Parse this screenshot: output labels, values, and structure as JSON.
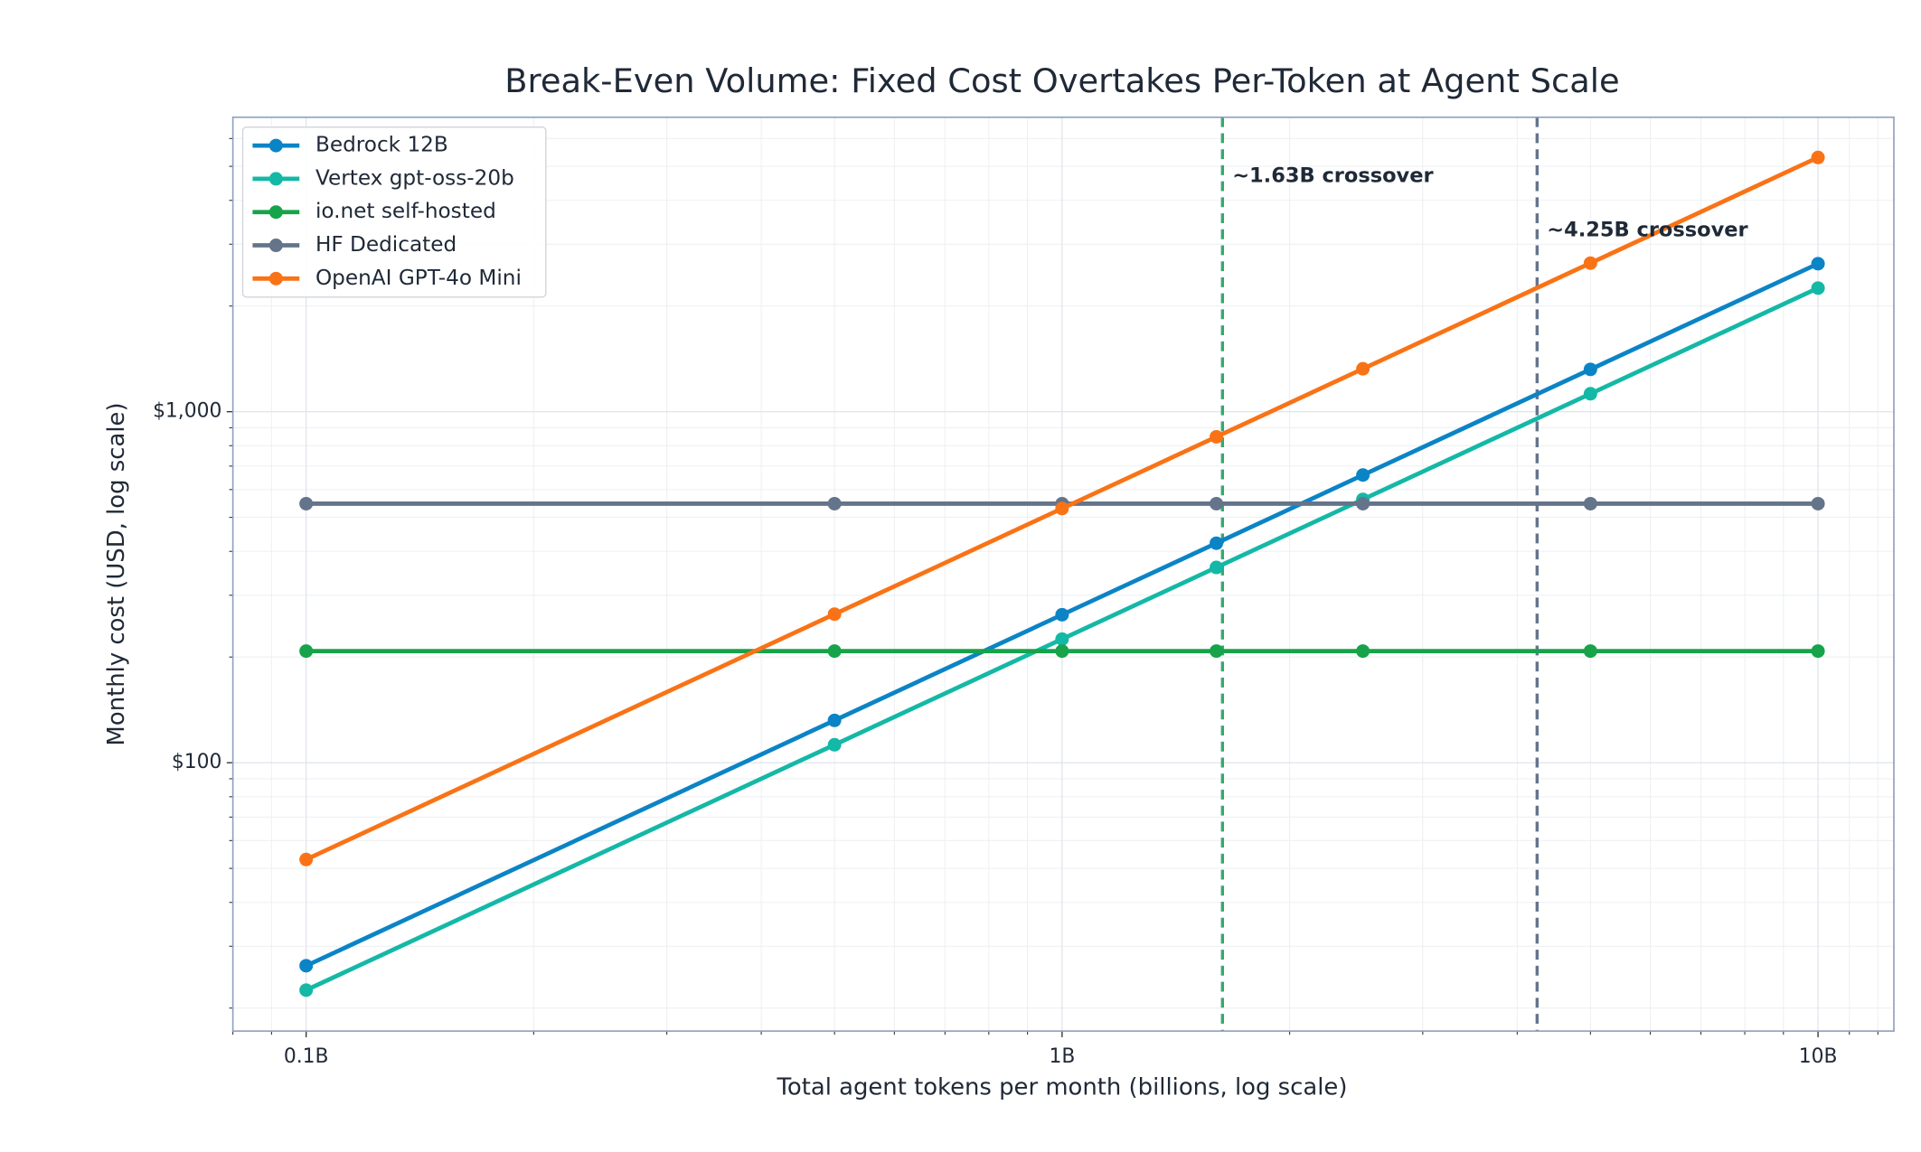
{
  "chart_data": {
    "type": "line",
    "title": "Break-Even Volume: Fixed Cost Overtakes Per-Token at Agent Scale",
    "x_label": "Total agent tokens per month (billions, log scale)",
    "y_label": "Monthly cost (USD, log scale)",
    "x": [
      0.1,
      0.5,
      1,
      1.6,
      2.5,
      5,
      10
    ],
    "series": [
      {
        "name": "Bedrock 12B",
        "color": "#0b84c6",
        "values": [
          26.4,
          132,
          264,
          422,
          660,
          1320,
          2640
        ]
      },
      {
        "name": "Vertex gpt-oss-20b",
        "color": "#14b8a6",
        "values": [
          22.5,
          112.5,
          225,
          360,
          562.5,
          1125,
          2250
        ]
      },
      {
        "name": "io.net self-hosted",
        "color": "#16a34a",
        "values": [
          208,
          208,
          208,
          208,
          208,
          208,
          208
        ]
      },
      {
        "name": "HF Dedicated",
        "color": "#64748b",
        "values": [
          547,
          547,
          547,
          547,
          547,
          547,
          547
        ]
      },
      {
        "name": "OpenAI GPT-4o Mini",
        "color": "#f97316",
        "values": [
          53,
          265,
          530,
          848,
          1325,
          2650,
          5300
        ]
      }
    ],
    "vlines": [
      {
        "x": 1.63,
        "label": "~1.63B crossover",
        "color": "#3aa76d",
        "label_color": "#166534"
      },
      {
        "x": 4.25,
        "label": "~4.25B crossover",
        "color": "#64748b",
        "label_color": "#334155"
      }
    ],
    "xscale": "log",
    "yscale": "log",
    "xlim": [
      0.08,
      12.6
    ],
    "ylim": [
      17.2,
      6900
    ],
    "xticks": [
      {
        "value": 0.1,
        "label": "0.1B"
      },
      {
        "value": 1,
        "label": "1B"
      },
      {
        "value": 10,
        "label": "10B"
      }
    ],
    "yticks": [
      {
        "value": 100,
        "label": "$100"
      },
      {
        "value": 1000,
        "label": "$1,000"
      }
    ],
    "xminorticks": [
      0.08,
      0.09,
      0.2,
      0.3,
      0.4,
      0.5,
      0.6,
      0.7,
      0.8,
      0.9,
      2,
      3,
      4,
      5,
      6,
      7,
      8,
      9,
      11,
      12
    ],
    "yminorticks": [
      20,
      30,
      40,
      50,
      60,
      70,
      80,
      90,
      200,
      300,
      400,
      500,
      600,
      700,
      800,
      900,
      2000,
      3000,
      4000,
      5000,
      6000
    ],
    "grid": true,
    "legend": "upper left"
  }
}
